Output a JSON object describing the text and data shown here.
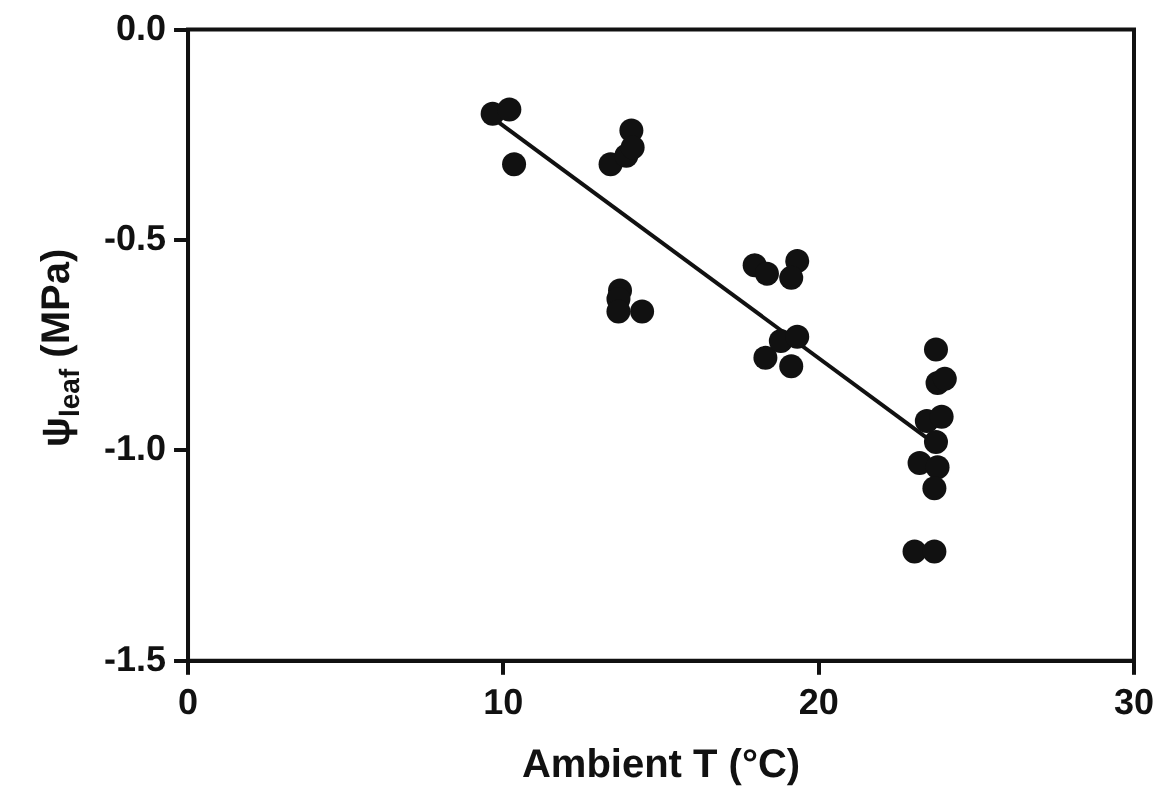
{
  "chart_data": {
    "type": "scatter",
    "xlabel": "Ambient T (°C)",
    "ylabel": "ψ$_{leaf}$ (MPa)",
    "xlim": [
      0,
      30
    ],
    "xticks": [
      0,
      10,
      20,
      30
    ],
    "ylim": [
      -1.5,
      0
    ],
    "yticks": [
      {
        "value": 0,
        "label": "0.0"
      },
      {
        "value": -0.5,
        "label": "-0.5"
      },
      {
        "value": -1,
        "label": "-1.0"
      },
      {
        "value": -1.5,
        "label": "-1.5"
      }
    ],
    "marker": "circle",
    "series": [
      {
        "color": "#111111",
        "x": [
          9.66,
          10.19,
          10.34,
          13.4,
          13.9,
          14.06,
          14.1,
          13.7,
          13.65,
          13.65,
          14.4,
          17.97,
          18.36,
          19.32,
          19.13,
          18.31,
          18.8,
          19.32,
          19.13,
          23.72,
          23.77,
          24.0,
          23.43,
          23.9,
          23.72,
          23.2,
          23.77,
          23.67,
          23.04,
          23.67
        ],
        "values": [
          -0.2,
          -0.19,
          -0.32,
          -0.32,
          -0.3,
          -0.24,
          -0.28,
          -0.62,
          -0.64,
          -0.67,
          -0.67,
          -0.56,
          -0.58,
          -0.55,
          -0.59,
          -0.78,
          -0.74,
          -0.73,
          -0.8,
          -0.76,
          -0.84,
          -0.83,
          -0.93,
          -0.92,
          -0.98,
          -1.03,
          -1.04,
          -1.09,
          -1.24,
          -1.24
        ]
      },
      {
        "type": "line",
        "color": "#111111",
        "marker": "none",
        "line_style": "solid",
        "x": [
          9.66,
          23.43
        ],
        "values": [
          -0.21,
          -0.97
        ]
      }
    ]
  }
}
